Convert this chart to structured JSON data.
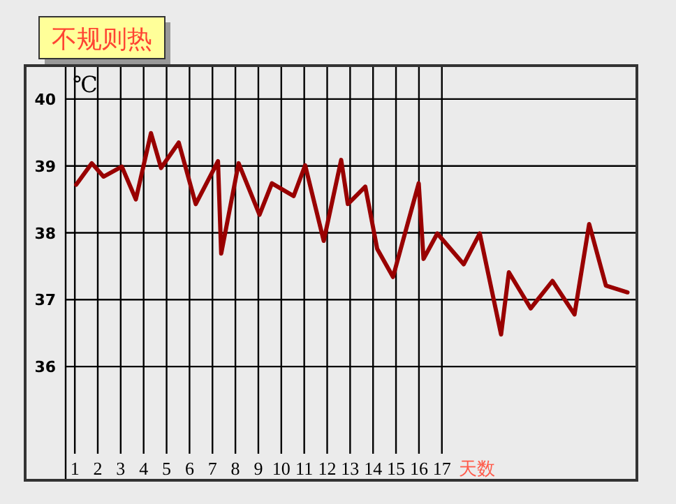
{
  "chart_data": {
    "type": "line",
    "title": "不规则热",
    "ylabel": "℃",
    "xlabel": "天数",
    "x": [
      1.06,
      1.74,
      2.25,
      3.05,
      3.66,
      4.32,
      4.76,
      5.53,
      6.27,
      7.24,
      7.38,
      8.14,
      9.05,
      9.59,
      10.54,
      11.04,
      11.85,
      12.61,
      12.9,
      13.66,
      14.18,
      14.87,
      15.99,
      16.2,
      16.8,
      17.95,
      18.65,
      19.58,
      19.92,
      20.87,
      21.82,
      22.78,
      23.42,
      24.15,
      25.09
    ],
    "series": [
      {
        "color": "#990000",
        "values": [
          38.72,
          39.04,
          38.84,
          38.99,
          38.5,
          39.49,
          38.97,
          39.35,
          38.43,
          39.07,
          37.69,
          39.04,
          38.27,
          38.74,
          38.55,
          39.01,
          37.88,
          39.09,
          38.43,
          38.69,
          37.76,
          37.34,
          38.74,
          37.61,
          37.99,
          37.53,
          37.99,
          36.48,
          37.41,
          36.87,
          37.28,
          36.78,
          38.13,
          37.21,
          37.11
        ]
      }
    ],
    "xlim": [
      0.6,
      25.5
    ],
    "ylim": [
      34.3,
      40.5
    ],
    "xticks": [
      1,
      2,
      3,
      4,
      5,
      6,
      7,
      8,
      9,
      10,
      11,
      12,
      13,
      14,
      15,
      16,
      17
    ],
    "yticks": [
      36,
      37,
      38,
      39,
      40
    ],
    "grid": true
  }
}
